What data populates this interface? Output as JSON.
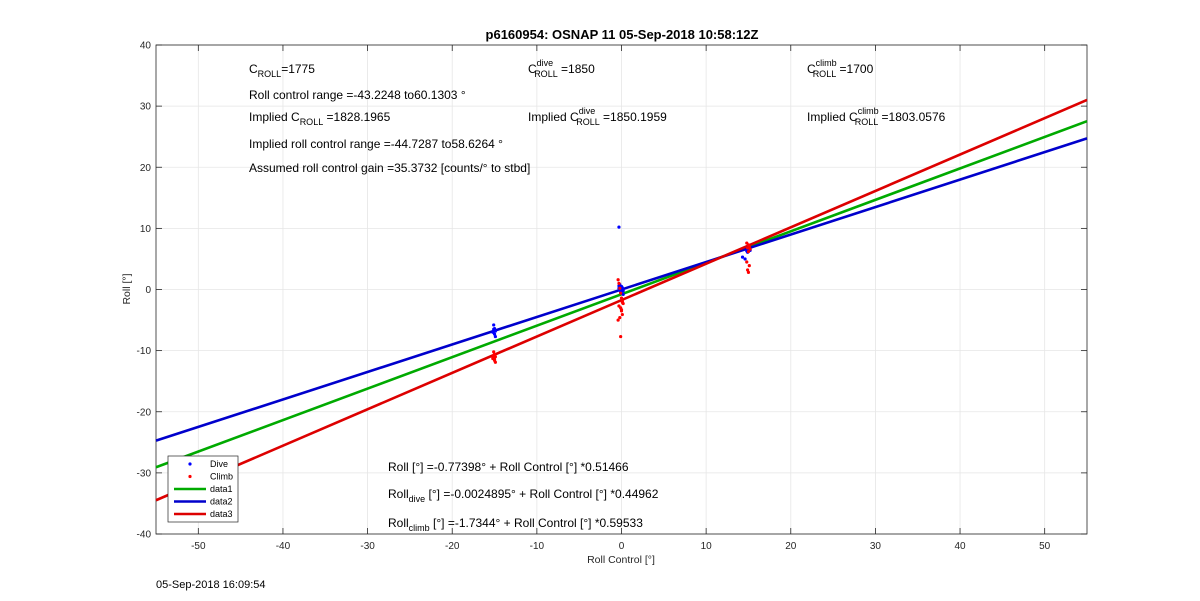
{
  "chart_data": {
    "type": "scatter",
    "title": "p6160954: OSNAP 11 05-Sep-2018 10:58:12Z",
    "xlabel": "Roll Control [°]",
    "ylabel": "Roll [°]",
    "xlim": [
      -55,
      55
    ],
    "ylim": [
      -40,
      40
    ],
    "xticks": [
      -50,
      -40,
      -30,
      -20,
      -10,
      0,
      10,
      20,
      30,
      40,
      50
    ],
    "yticks": [
      -40,
      -30,
      -20,
      -10,
      0,
      10,
      20,
      30,
      40
    ],
    "grid": true,
    "legend_position": "bottom-left",
    "series": [
      {
        "name": "Dive",
        "kind": "points",
        "color": "#0000ff",
        "x": [
          -15.1,
          -15.0,
          -14.9,
          -15.2,
          -15.0,
          -14.9,
          -15.1,
          -0.3,
          -0.2,
          -0.1,
          0.0,
          0.1,
          0.2,
          -0.2,
          0.0,
          0.1,
          -0.1,
          -0.3,
          0.2,
          -0.3,
          14.6,
          14.8,
          15.0,
          15.1,
          14.9,
          15.0,
          15.2,
          14.9,
          15.0,
          14.3
        ],
        "y": [
          -5.8,
          -6.4,
          -6.8,
          -7.0,
          -7.3,
          -7.7,
          -6.5,
          0.2,
          0.0,
          -0.4,
          0.5,
          0.3,
          -0.2,
          0.8,
          -0.6,
          0.1,
          0.4,
          10.2,
          -0.8,
          0.6,
          5.0,
          6.3,
          6.5,
          6.7,
          6.1,
          6.9,
          6.4,
          6.8,
          6.6,
          5.3
        ]
      },
      {
        "name": "Climb",
        "kind": "points",
        "color": "#ff0000",
        "x": [
          -15.1,
          -15.0,
          -14.9,
          -15.2,
          -15.0,
          -14.9,
          -15.1,
          -15.0,
          -15.2,
          -0.4,
          -0.3,
          -0.2,
          -0.1,
          0.0,
          0.1,
          0.2,
          -0.3,
          -0.1,
          0.0,
          0.1,
          -0.2,
          -0.4,
          0.1,
          0.0,
          -0.1,
          14.8,
          15.0,
          15.1,
          14.9,
          15.2,
          15.0,
          14.8,
          15.1,
          14.9,
          15.0
        ],
        "y": [
          -10.2,
          -10.6,
          -11.0,
          -11.3,
          -11.6,
          -11.9,
          -10.8,
          -11.4,
          -11.1,
          1.6,
          1.0,
          0.2,
          -0.6,
          -1.4,
          -1.9,
          -2.3,
          -2.7,
          -3.0,
          -3.5,
          -4.1,
          -4.6,
          -5.0,
          -2.1,
          -3.3,
          -7.7,
          7.6,
          7.3,
          7.0,
          6.8,
          6.6,
          6.2,
          4.5,
          3.9,
          3.2,
          2.8
        ]
      },
      {
        "name": "data1",
        "kind": "line",
        "color": "#00aa00",
        "x": [
          -55,
          55
        ],
        "intercept": -0.77398,
        "slope": 0.51466
      },
      {
        "name": "data2",
        "kind": "line",
        "color": "#0000cc",
        "x": [
          -55,
          55
        ],
        "intercept": -0.0024895,
        "slope": 0.44962
      },
      {
        "name": "data3",
        "kind": "line",
        "color": "#dd0000",
        "x": [
          -55,
          55
        ],
        "intercept": -1.7344,
        "slope": 0.59533
      }
    ],
    "annotations": {
      "croll": {
        "base": "C",
        "sub": "ROLL",
        "value": "=1775"
      },
      "roll_range": "Roll control range =-43.2248 to60.1303 °",
      "implied_croll": {
        "prefix": "Implied C",
        "sub": "ROLL",
        "value": " =1828.1965"
      },
      "implied_range": "Implied roll control range =-44.7287 to58.6264 °",
      "gain": "Assumed roll control gain =35.3732 [counts/° to stbd]",
      "croll_dive": {
        "base": "C",
        "sup": "dive",
        "sub": "ROLL",
        "value": " =1850"
      },
      "implied_dive": {
        "prefix": "Implied C",
        "sup": "dive",
        "sub": "ROLL",
        "value": " =1850.1959"
      },
      "croll_climb": {
        "base": "C",
        "sup": "climb",
        "sub": "ROLL",
        "value": " =1700"
      },
      "implied_climb": {
        "prefix": "Implied C",
        "sup": "climb",
        "sub": "ROLL",
        "value": " =1803.0576"
      },
      "eq_all": "Roll [°] =-0.77398° + Roll Control [°] *0.51466",
      "eq_dive": {
        "base": "Roll",
        "sub": "dive",
        "rest": " [°] =-0.0024895° + Roll Control [°] *0.44962"
      },
      "eq_climb": {
        "base": "Roll",
        "sub": "climb",
        "rest": " [°] =-1.7344° + Roll Control [°] *0.59533"
      }
    }
  },
  "footer": {
    "timestamp": "05-Sep-2018 16:09:54"
  }
}
